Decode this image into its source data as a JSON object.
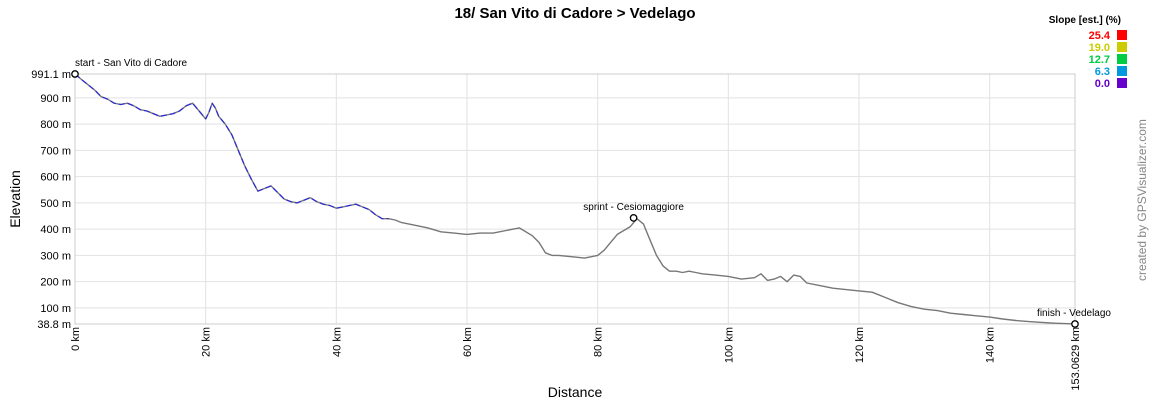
{
  "chart_data": {
    "type": "line",
    "title": "18/ San Vito di Cadore > Vedelago",
    "xlabel": "Distance",
    "ylabel": "Elevation",
    "x_unit": "km",
    "y_unit": "m",
    "xlim": [
      0,
      153.0629
    ],
    "ylim": [
      38.8,
      991.1
    ],
    "x_ticks": [
      "0 km",
      "20 km",
      "40 km",
      "60 km",
      "80 km",
      "100 km",
      "120 km",
      "140 km",
      "153.0629 km"
    ],
    "x_tick_values": [
      0,
      20,
      40,
      60,
      80,
      100,
      120,
      140,
      153.0629
    ],
    "y_ticks": [
      "38.8 m",
      "100 m",
      "200 m",
      "300 m",
      "400 m",
      "500 m",
      "600 m",
      "700 m",
      "800 m",
      "900 m",
      "991.1 m"
    ],
    "y_tick_values": [
      38.8,
      100,
      200,
      300,
      400,
      500,
      600,
      700,
      800,
      900,
      991.1
    ],
    "grid": true,
    "series": [
      {
        "x": [
          0,
          1,
          2,
          3,
          4,
          5,
          6,
          7,
          8,
          9,
          10,
          11,
          12,
          13,
          14,
          15,
          16,
          17,
          18,
          19,
          20,
          20.5,
          21,
          21.5,
          22,
          23,
          24,
          25,
          26,
          27,
          28,
          29,
          30,
          31,
          32,
          33,
          34,
          35,
          36,
          37,
          38,
          39,
          40,
          41,
          42,
          43,
          44,
          45,
          46,
          47,
          48,
          49,
          50,
          52,
          54,
          56,
          58,
          60,
          62,
          64,
          66,
          67,
          68,
          70,
          71,
          72,
          73,
          74,
          76,
          78,
          80,
          81,
          82,
          83,
          84,
          85,
          86,
          87,
          88,
          89,
          90,
          91,
          92,
          93,
          94,
          95,
          96,
          98,
          100,
          102,
          104,
          105,
          106,
          107,
          108,
          109,
          110,
          111,
          112,
          114,
          116,
          118,
          120,
          122,
          124,
          126,
          128,
          130,
          132,
          134,
          136,
          138,
          140,
          142,
          144,
          146,
          148,
          150,
          152,
          153.06
        ],
        "y": [
          991,
          970,
          950,
          930,
          905,
          895,
          880,
          875,
          880,
          870,
          855,
          850,
          840,
          830,
          835,
          840,
          850,
          870,
          880,
          850,
          820,
          845,
          880,
          860,
          830,
          800,
          760,
          700,
          640,
          590,
          545,
          555,
          565,
          540,
          515,
          505,
          500,
          510,
          520,
          505,
          495,
          490,
          480,
          485,
          490,
          495,
          485,
          475,
          455,
          440,
          440,
          435,
          425,
          415,
          405,
          390,
          385,
          380,
          385,
          385,
          395,
          400,
          405,
          375,
          350,
          310,
          300,
          300,
          295,
          290,
          300,
          320,
          350,
          380,
          395,
          410,
          440,
          420,
          360,
          300,
          260,
          240,
          240,
          235,
          240,
          235,
          230,
          225,
          220,
          210,
          215,
          230,
          205,
          210,
          220,
          200,
          225,
          220,
          195,
          185,
          175,
          170,
          165,
          160,
          140,
          120,
          105,
          95,
          90,
          80,
          75,
          70,
          65,
          58,
          52,
          48,
          45,
          42,
          40,
          39
        ]
      }
    ],
    "waypoints": [
      {
        "label": "start - San Vito di Cadore",
        "x": 0,
        "y": 991.1
      },
      {
        "label": "sprint - Cesiomaggiore",
        "x": 85.5,
        "y": 443
      },
      {
        "label": "finish - Vedelago",
        "x": 153.0629,
        "y": 38.8
      }
    ],
    "legend": {
      "title": "Slope [est.] (%)",
      "placement": "top-right",
      "items": [
        {
          "label": "25.4",
          "color": "#ff0000"
        },
        {
          "label": "19.0",
          "color": "#cccc00"
        },
        {
          "label": "12.7",
          "color": "#00cc44"
        },
        {
          "label": "6.3",
          "color": "#0099dd"
        },
        {
          "label": "0.0",
          "color": "#6600cc"
        }
      ]
    },
    "line_color": "#777777",
    "accent_segment_color": "#2a2ad8",
    "credit": "created by GPSVisualizer.com"
  }
}
